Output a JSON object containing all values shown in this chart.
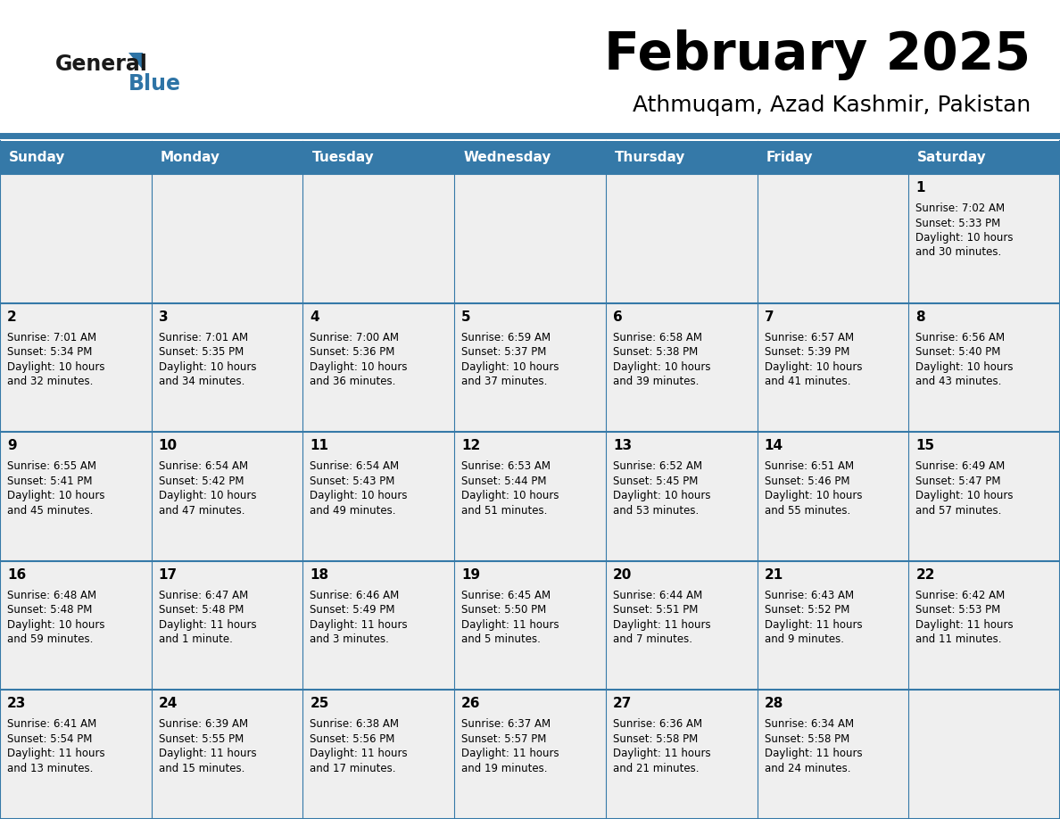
{
  "title": "February 2025",
  "subtitle": "Athmuqam, Azad Kashmir, Pakistan",
  "header_bg": "#3579A8",
  "header_text_color": "#FFFFFF",
  "cell_bg": "#EFEFEF",
  "empty_cell_bg": "#FFFFFF",
  "border_color": "#3579A8",
  "day_headers": [
    "Sunday",
    "Monday",
    "Tuesday",
    "Wednesday",
    "Thursday",
    "Friday",
    "Saturday"
  ],
  "logo_color1": "#1a1a1a",
  "logo_color2": "#2E74A6",
  "weeks": [
    [
      {
        "day": null,
        "sunrise": null,
        "sunset": null,
        "daylight": null
      },
      {
        "day": null,
        "sunrise": null,
        "sunset": null,
        "daylight": null
      },
      {
        "day": null,
        "sunrise": null,
        "sunset": null,
        "daylight": null
      },
      {
        "day": null,
        "sunrise": null,
        "sunset": null,
        "daylight": null
      },
      {
        "day": null,
        "sunrise": null,
        "sunset": null,
        "daylight": null
      },
      {
        "day": null,
        "sunrise": null,
        "sunset": null,
        "daylight": null
      },
      {
        "day": 1,
        "sunrise": "7:02 AM",
        "sunset": "5:33 PM",
        "daylight": "10 hours\nand 30 minutes."
      }
    ],
    [
      {
        "day": 2,
        "sunrise": "7:01 AM",
        "sunset": "5:34 PM",
        "daylight": "10 hours\nand 32 minutes."
      },
      {
        "day": 3,
        "sunrise": "7:01 AM",
        "sunset": "5:35 PM",
        "daylight": "10 hours\nand 34 minutes."
      },
      {
        "day": 4,
        "sunrise": "7:00 AM",
        "sunset": "5:36 PM",
        "daylight": "10 hours\nand 36 minutes."
      },
      {
        "day": 5,
        "sunrise": "6:59 AM",
        "sunset": "5:37 PM",
        "daylight": "10 hours\nand 37 minutes."
      },
      {
        "day": 6,
        "sunrise": "6:58 AM",
        "sunset": "5:38 PM",
        "daylight": "10 hours\nand 39 minutes."
      },
      {
        "day": 7,
        "sunrise": "6:57 AM",
        "sunset": "5:39 PM",
        "daylight": "10 hours\nand 41 minutes."
      },
      {
        "day": 8,
        "sunrise": "6:56 AM",
        "sunset": "5:40 PM",
        "daylight": "10 hours\nand 43 minutes."
      }
    ],
    [
      {
        "day": 9,
        "sunrise": "6:55 AM",
        "sunset": "5:41 PM",
        "daylight": "10 hours\nand 45 minutes."
      },
      {
        "day": 10,
        "sunrise": "6:54 AM",
        "sunset": "5:42 PM",
        "daylight": "10 hours\nand 47 minutes."
      },
      {
        "day": 11,
        "sunrise": "6:54 AM",
        "sunset": "5:43 PM",
        "daylight": "10 hours\nand 49 minutes."
      },
      {
        "day": 12,
        "sunrise": "6:53 AM",
        "sunset": "5:44 PM",
        "daylight": "10 hours\nand 51 minutes."
      },
      {
        "day": 13,
        "sunrise": "6:52 AM",
        "sunset": "5:45 PM",
        "daylight": "10 hours\nand 53 minutes."
      },
      {
        "day": 14,
        "sunrise": "6:51 AM",
        "sunset": "5:46 PM",
        "daylight": "10 hours\nand 55 minutes."
      },
      {
        "day": 15,
        "sunrise": "6:49 AM",
        "sunset": "5:47 PM",
        "daylight": "10 hours\nand 57 minutes."
      }
    ],
    [
      {
        "day": 16,
        "sunrise": "6:48 AM",
        "sunset": "5:48 PM",
        "daylight": "10 hours\nand 59 minutes."
      },
      {
        "day": 17,
        "sunrise": "6:47 AM",
        "sunset": "5:48 PM",
        "daylight": "11 hours\nand 1 minute."
      },
      {
        "day": 18,
        "sunrise": "6:46 AM",
        "sunset": "5:49 PM",
        "daylight": "11 hours\nand 3 minutes."
      },
      {
        "day": 19,
        "sunrise": "6:45 AM",
        "sunset": "5:50 PM",
        "daylight": "11 hours\nand 5 minutes."
      },
      {
        "day": 20,
        "sunrise": "6:44 AM",
        "sunset": "5:51 PM",
        "daylight": "11 hours\nand 7 minutes."
      },
      {
        "day": 21,
        "sunrise": "6:43 AM",
        "sunset": "5:52 PM",
        "daylight": "11 hours\nand 9 minutes."
      },
      {
        "day": 22,
        "sunrise": "6:42 AM",
        "sunset": "5:53 PM",
        "daylight": "11 hours\nand 11 minutes."
      }
    ],
    [
      {
        "day": 23,
        "sunrise": "6:41 AM",
        "sunset": "5:54 PM",
        "daylight": "11 hours\nand 13 minutes."
      },
      {
        "day": 24,
        "sunrise": "6:39 AM",
        "sunset": "5:55 PM",
        "daylight": "11 hours\nand 15 minutes."
      },
      {
        "day": 25,
        "sunrise": "6:38 AM",
        "sunset": "5:56 PM",
        "daylight": "11 hours\nand 17 minutes."
      },
      {
        "day": 26,
        "sunrise": "6:37 AM",
        "sunset": "5:57 PM",
        "daylight": "11 hours\nand 19 minutes."
      },
      {
        "day": 27,
        "sunrise": "6:36 AM",
        "sunset": "5:58 PM",
        "daylight": "11 hours\nand 21 minutes."
      },
      {
        "day": 28,
        "sunrise": "6:34 AM",
        "sunset": "5:58 PM",
        "daylight": "11 hours\nand 24 minutes."
      },
      {
        "day": null,
        "sunrise": null,
        "sunset": null,
        "daylight": null
      }
    ]
  ]
}
